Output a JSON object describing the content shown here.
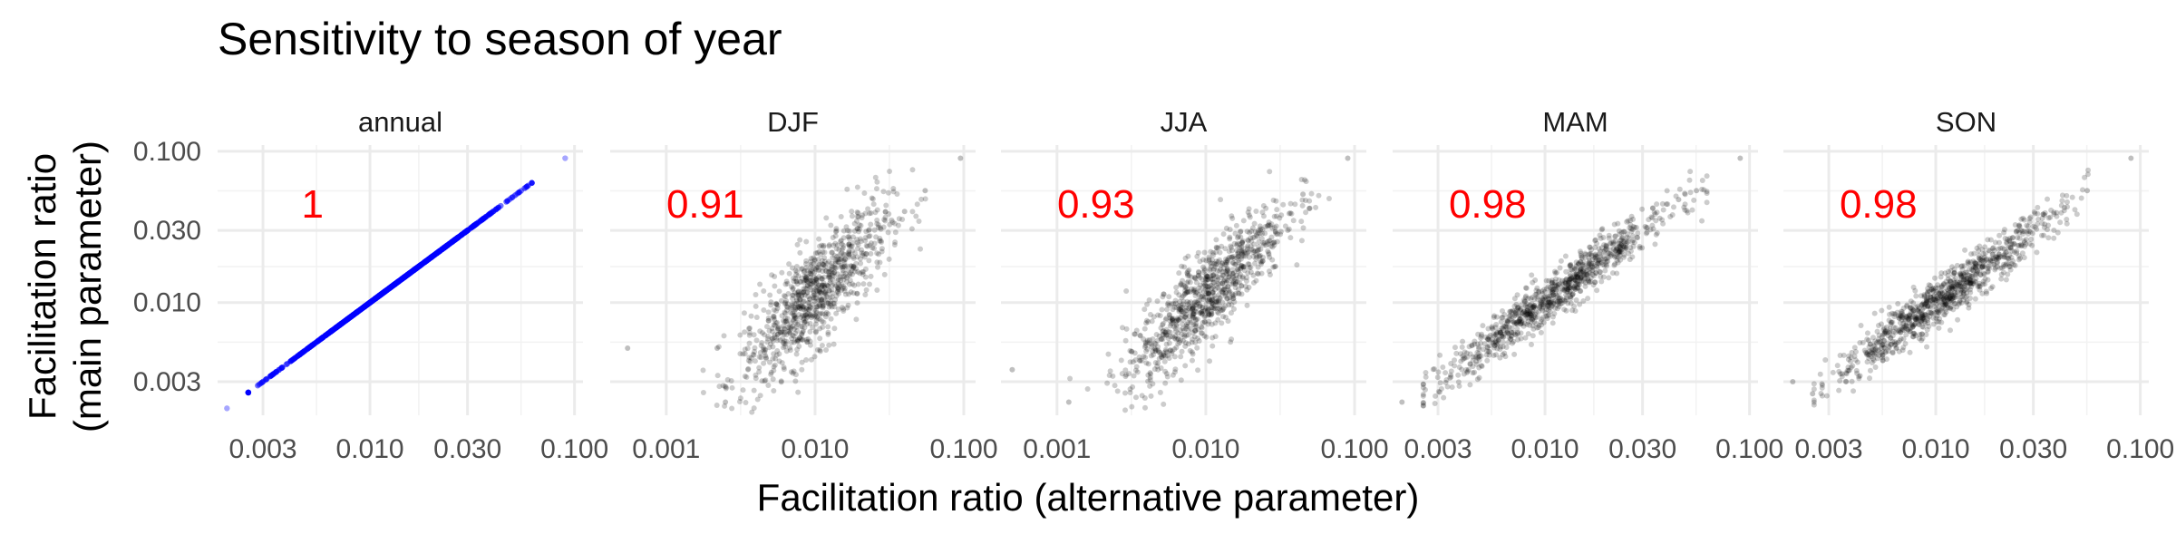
{
  "title": "Sensitivity to season of year",
  "chart_data": {
    "type": "scatter",
    "xlabel": "Facilitation ratio (alternative parameter)",
    "ylabel_line1": "Facilitation ratio",
    "ylabel_line2": "(main parameter)",
    "y_scale": "log10",
    "x_scale": "log10",
    "y_ticks": [
      0.003,
      0.01,
      0.03,
      0.1
    ],
    "y_tick_labels": [
      "0.003",
      "0.010",
      "0.030",
      "0.100"
    ],
    "ylim": [
      0.0018,
      0.11
    ],
    "grid": true,
    "colors": {
      "annual_points": "#0000ff",
      "season_points": "#000000",
      "correlation_text": "#ff0000",
      "grid": "#ebebeb"
    },
    "panels": [
      {
        "name": "annual",
        "correlation": "1",
        "xlim": [
          0.0018,
          0.11
        ],
        "x_ticks": [
          0.003,
          0.01,
          0.03,
          0.1
        ],
        "x_tick_labels": [
          "0.003",
          "0.010",
          "0.030",
          "0.100"
        ],
        "point_color": "#0000ff",
        "trend": {
          "slope": 1.0,
          "intercept": 0.0,
          "spread": 0.0,
          "center": -1.9,
          "sd": 0.28
        },
        "outliers": [
          [
            0.002,
            0.002
          ],
          [
            0.042,
            0.042
          ],
          [
            0.052,
            0.052
          ],
          [
            0.09,
            0.09
          ]
        ]
      },
      {
        "name": "DJF",
        "correlation": "0.91",
        "xlim": [
          0.00042,
          0.12
        ],
        "x_ticks": [
          0.001,
          0.01,
          0.1
        ],
        "x_tick_labels": [
          "0.001",
          "0.010",
          "0.100"
        ],
        "point_color": "#000000",
        "trend": {
          "slope": 0.95,
          "intercept": -0.05,
          "spread": 0.17,
          "center": -2.0,
          "sd": 0.25
        },
        "outliers": [
          [
            0.00055,
            0.005
          ],
          [
            0.0025,
            0.0022
          ],
          [
            0.055,
            0.055
          ],
          [
            0.095,
            0.09
          ],
          [
            0.04,
            0.04
          ],
          [
            0.0022,
            0.005
          ]
        ]
      },
      {
        "name": "JJA",
        "correlation": "0.93",
        "xlim": [
          0.00042,
          0.12
        ],
        "x_ticks": [
          0.001,
          0.01,
          0.1
        ],
        "x_tick_labels": [
          "0.001",
          "0.010",
          "0.100"
        ],
        "point_color": "#000000",
        "trend": {
          "slope": 0.95,
          "intercept": -0.05,
          "spread": 0.15,
          "center": -2.0,
          "sd": 0.27
        },
        "outliers": [
          [
            0.0005,
            0.0036
          ],
          [
            0.0012,
            0.0022
          ],
          [
            0.09,
            0.09
          ],
          [
            0.045,
            0.052
          ],
          [
            0.05,
            0.042
          ]
        ]
      },
      {
        "name": "MAM",
        "correlation": "0.98",
        "xlim": [
          0.0018,
          0.11
        ],
        "x_ticks": [
          0.003,
          0.01,
          0.03,
          0.1
        ],
        "x_tick_labels": [
          "0.003",
          "0.010",
          "0.030",
          "0.100"
        ],
        "point_color": "#000000",
        "trend": {
          "slope": 1.0,
          "intercept": 0.0,
          "spread": 0.075,
          "center": -1.95,
          "sd": 0.28
        },
        "outliers": [
          [
            0.002,
            0.0022
          ],
          [
            0.09,
            0.09
          ],
          [
            0.055,
            0.055
          ],
          [
            0.045,
            0.048
          ]
        ]
      },
      {
        "name": "SON",
        "correlation": "0.98",
        "xlim": [
          0.0018,
          0.11
        ],
        "x_ticks": [
          0.003,
          0.01,
          0.03,
          0.1
        ],
        "x_tick_labels": [
          "0.003",
          "0.010",
          "0.030",
          "0.100"
        ],
        "point_color": "#000000",
        "trend": {
          "slope": 1.0,
          "intercept": 0.0,
          "spread": 0.075,
          "center": -1.95,
          "sd": 0.28
        },
        "outliers": [
          [
            0.002,
            0.003
          ],
          [
            0.09,
            0.09
          ],
          [
            0.055,
            0.055
          ],
          [
            0.0025,
            0.0025
          ]
        ]
      }
    ]
  }
}
